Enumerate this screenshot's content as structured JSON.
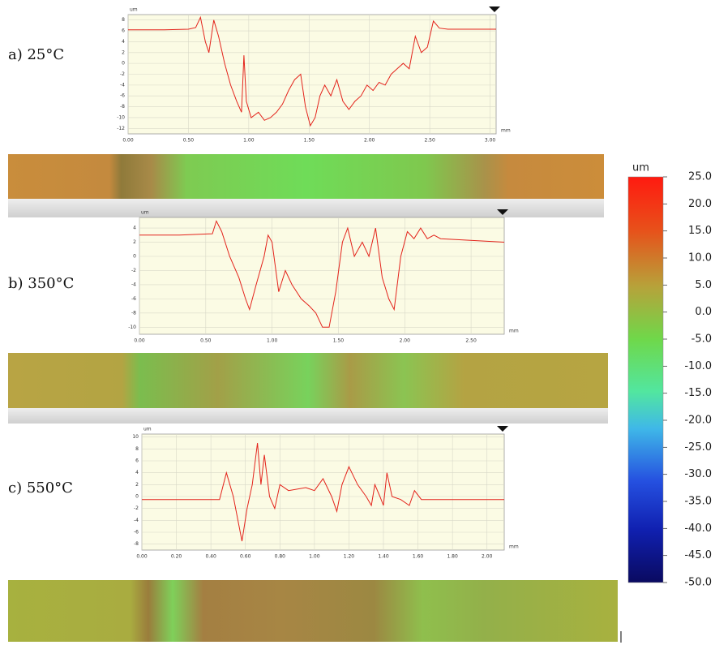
{
  "chart_data": [
    {
      "type": "line",
      "title": "a) 25°C",
      "ylabel": "um",
      "xlabel": "mm",
      "x": [
        0,
        0.3,
        0.5,
        0.56,
        0.6,
        0.64,
        0.67,
        0.71,
        0.75,
        0.8,
        0.85,
        0.9,
        0.94,
        0.96,
        0.98,
        1.02,
        1.08,
        1.13,
        1.18,
        1.23,
        1.28,
        1.33,
        1.38,
        1.43,
        1.47,
        1.51,
        1.55,
        1.59,
        1.63,
        1.68,
        1.73,
        1.78,
        1.83,
        1.88,
        1.93,
        1.98,
        2.03,
        2.08,
        2.13,
        2.18,
        2.23,
        2.28,
        2.33,
        2.38,
        2.43,
        2.48,
        2.53,
        2.58,
        2.65,
        3.05
      ],
      "series": [
        {
          "color": "#e3231b",
          "values": [
            6.2,
            6.2,
            6.3,
            6.6,
            8.5,
            4,
            2,
            8,
            5,
            0,
            -4,
            -7,
            -9,
            1.5,
            -7,
            -10,
            -9,
            -10.5,
            -10,
            -9,
            -7.5,
            -5,
            -3,
            -2,
            -8,
            -11.5,
            -10,
            -6,
            -4,
            -6,
            -3,
            -7,
            -8.5,
            -7,
            -6,
            -4,
            -5,
            -3.5,
            -4,
            -2,
            -1,
            0,
            -1,
            5,
            2,
            3,
            7.8,
            6.5,
            6.3,
            6.3
          ]
        }
      ],
      "xlim": [
        0,
        3.05
      ],
      "ylim": [
        -13,
        9
      ],
      "xticks": [
        {
          "value": 0,
          "label": "0.00"
        },
        {
          "value": 0.5,
          "label": "0.50"
        },
        {
          "value": 1,
          "label": "1.00"
        },
        {
          "value": 1.5,
          "label": "1.50"
        },
        {
          "value": 2,
          "label": "2.00"
        },
        {
          "value": 2.5,
          "label": "2.50"
        },
        {
          "value": 3,
          "label": "3.00"
        }
      ],
      "yticks": [
        8,
        6,
        4,
        2,
        0,
        -2,
        -4,
        -6,
        -8,
        -10,
        -12
      ],
      "grid": true
    },
    {
      "type": "line",
      "title": "b) 350°C",
      "ylabel": "um",
      "xlabel": "mm",
      "x": [
        0,
        0.3,
        0.55,
        0.58,
        0.62,
        0.68,
        0.75,
        0.8,
        0.83,
        0.88,
        0.94,
        0.97,
        1.0,
        1.05,
        1.1,
        1.15,
        1.22,
        1.28,
        1.33,
        1.38,
        1.43,
        1.48,
        1.53,
        1.57,
        1.62,
        1.68,
        1.73,
        1.78,
        1.83,
        1.88,
        1.92,
        1.97,
        2.02,
        2.07,
        2.12,
        2.17,
        2.22,
        2.27,
        2.75
      ],
      "series": [
        {
          "color": "#e3231b",
          "values": [
            3,
            3,
            3.2,
            5,
            3.5,
            0,
            -3,
            -6,
            -7.5,
            -4,
            0,
            3,
            2,
            -5,
            -2,
            -4,
            -6,
            -7,
            -8,
            -10,
            -10,
            -5,
            2,
            4,
            0,
            2,
            0,
            4,
            -3,
            -6,
            -7.5,
            0,
            3.5,
            2.5,
            4,
            2.5,
            3,
            2.5,
            2
          ]
        }
      ],
      "xlim": [
        0,
        2.75
      ],
      "ylim": [
        -11,
        5.5
      ],
      "xticks": [
        {
          "value": 0,
          "label": "0.00"
        },
        {
          "value": 0.5,
          "label": "0.50"
        },
        {
          "value": 1,
          "label": "1.00"
        },
        {
          "value": 1.5,
          "label": "1.50"
        },
        {
          "value": 2,
          "label": "2.00"
        },
        {
          "value": 2.5,
          "label": "2.50"
        }
      ],
      "yticks": [
        4,
        2,
        0,
        -2,
        -4,
        -6,
        -8,
        -10
      ],
      "grid": true
    },
    {
      "type": "line",
      "title": "c) 550°C",
      "ylabel": "um",
      "xlabel": "mm",
      "x": [
        0,
        0.45,
        0.49,
        0.53,
        0.58,
        0.61,
        0.64,
        0.67,
        0.69,
        0.71,
        0.74,
        0.77,
        0.8,
        0.85,
        0.95,
        1.0,
        1.05,
        1.1,
        1.13,
        1.16,
        1.2,
        1.25,
        1.3,
        1.33,
        1.35,
        1.38,
        1.4,
        1.42,
        1.45,
        1.5,
        1.55,
        1.58,
        1.62,
        2.1
      ],
      "series": [
        {
          "color": "#e3231b",
          "values": [
            -0.5,
            -0.5,
            4,
            0,
            -7.5,
            -2,
            2,
            9,
            2,
            7,
            0,
            -2,
            2,
            1,
            1.5,
            1,
            3,
            0,
            -2.5,
            2,
            5,
            2,
            0,
            -1.5,
            2,
            0,
            -1.5,
            4,
            0,
            -0.5,
            -1.5,
            1,
            -0.5,
            -0.5
          ]
        }
      ],
      "xlim": [
        0,
        2.1
      ],
      "ylim": [
        -9,
        10.5
      ],
      "xticks": [
        {
          "value": 0,
          "label": "0.00"
        },
        {
          "value": 0.2,
          "label": "0.20"
        },
        {
          "value": 0.4,
          "label": "0.40"
        },
        {
          "value": 0.6,
          "label": "0.60"
        },
        {
          "value": 0.8,
          "label": "0.80"
        },
        {
          "value": 1,
          "label": "1.00"
        },
        {
          "value": 1.2,
          "label": "1.20"
        },
        {
          "value": 1.4,
          "label": "1.40"
        },
        {
          "value": 1.6,
          "label": "1.60"
        },
        {
          "value": 1.8,
          "label": "1.80"
        },
        {
          "value": 2,
          "label": "2.00"
        }
      ],
      "yticks": [
        10,
        8,
        6,
        4,
        2,
        0,
        -2,
        -4,
        -6,
        -8
      ],
      "grid": true
    },
    {
      "type": "colorbar",
      "ylabel": "um",
      "ylim": [
        -50,
        25
      ],
      "yticks": [
        {
          "value": 25,
          "label": "25.0"
        },
        {
          "value": 20,
          "label": "20.0"
        },
        {
          "value": 15,
          "label": "15.0"
        },
        {
          "value": 10,
          "label": "10.0"
        },
        {
          "value": 5,
          "label": "5.0"
        },
        {
          "value": 0,
          "label": "0.0"
        },
        {
          "value": -5,
          "label": "-5.0"
        },
        {
          "value": -10,
          "label": "-10.0"
        },
        {
          "value": -15,
          "label": "-15.0"
        },
        {
          "value": -20,
          "label": "-20.0"
        },
        {
          "value": -25,
          "label": "-25.0"
        },
        {
          "value": -30,
          "label": "-30.0"
        },
        {
          "value": -35,
          "label": "-35.0"
        },
        {
          "value": -40,
          "label": "-40.0"
        },
        {
          "value": -45,
          "label": "-45.0"
        },
        {
          "value": -50,
          "label": "-50.0"
        }
      ]
    }
  ]
}
